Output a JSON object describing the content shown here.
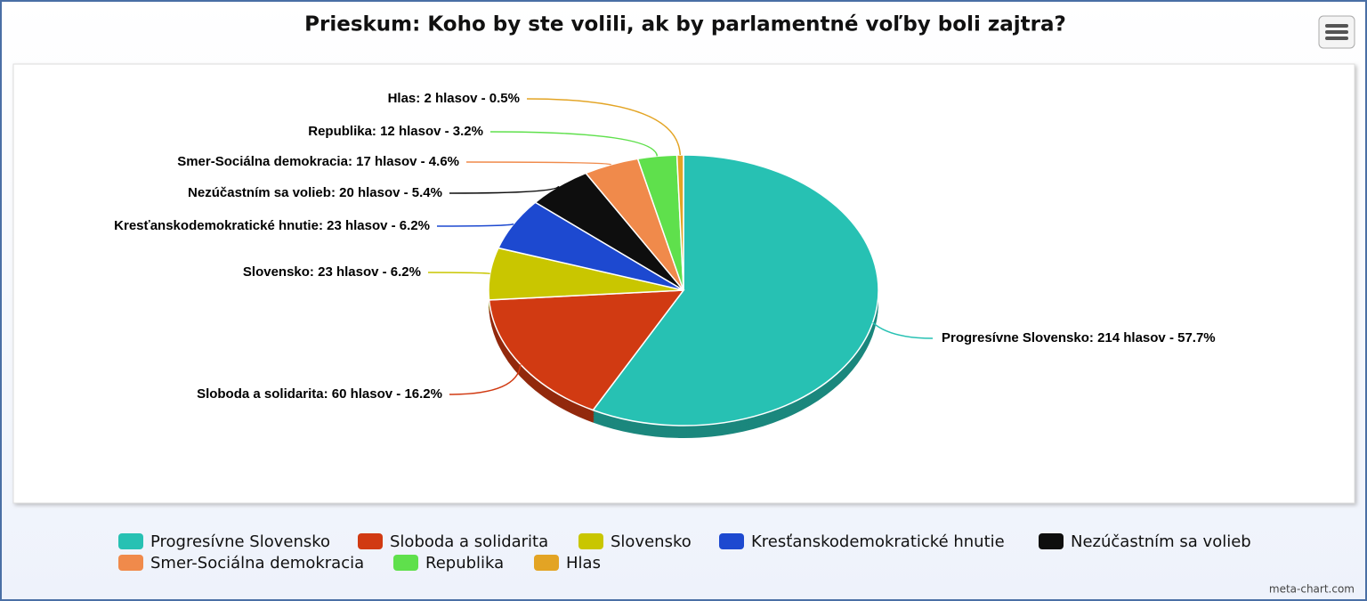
{
  "chart_data": {
    "type": "pie",
    "title": "Prieskum: Koho by ste volili, ak by parlamentné voľby boli zajtra?",
    "categories": [
      "Progresívne Slovensko",
      "Sloboda a solidarita",
      "Slovensko",
      "Kresťanskodemokratické hnutie",
      "Nezúčastním sa volieb",
      "Smer-Sociálna demokracia",
      "Republika",
      "Hlas"
    ],
    "values": [
      214,
      60,
      23,
      23,
      20,
      17,
      12,
      2
    ],
    "value_labels": [
      "Progresívne Slovensko: 214 hlasov - 57.7%",
      "Sloboda a solidarita: 60 hlasov - 16.2%",
      "Slovensko: 23 hlasov - 6.2%",
      "Kresťanskodemokratické hnutie: 23 hlasov - 6.2%",
      "Nezúčastním sa volieb: 20 hlasov - 5.4%",
      "Smer-Sociálna demokracia: 17 hlasov - 4.6%",
      "Republika: 12 hlasov - 3.2%",
      "Hlas: 2 hlasov - 0.5%"
    ],
    "colors": [
      "#27c1b3",
      "#d13a12",
      "#c9c600",
      "#1d49d0",
      "#0e0e0e",
      "#f08a4b",
      "#5fe04c",
      "#e3a424"
    ],
    "credit": "meta-chart.com"
  }
}
